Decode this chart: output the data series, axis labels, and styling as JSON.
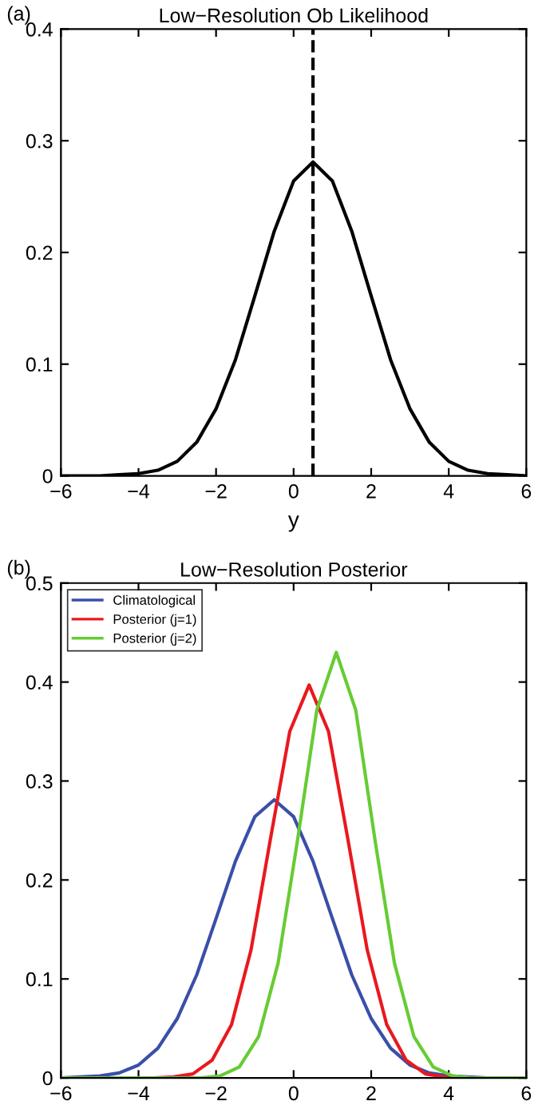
{
  "chart_data": [
    {
      "type": "line",
      "title": "Low−Resolution Ob Likelihood",
      "xlabel": "y",
      "annotations": [
        "(a)"
      ],
      "x": [
        -6,
        -5.5,
        -5,
        -4.5,
        -4,
        -3.5,
        -3,
        -2.5,
        -2,
        -1.5,
        -1,
        -0.5,
        0,
        0.5,
        1,
        1.5,
        2,
        2.5,
        3,
        3.5,
        4,
        4.5,
        5,
        5.5,
        6
      ],
      "series": [
        {
          "color": "#000000",
          "values": [
            0,
            0,
            0,
            0.001,
            0.002,
            0.005,
            0.013,
            0.03,
            0.06,
            0.104,
            0.161,
            0.219,
            0.264,
            0.281,
            0.264,
            0.219,
            0.161,
            0.104,
            0.06,
            0.03,
            0.013,
            0.005,
            0.002,
            0.001,
            0
          ]
        }
      ],
      "ref_lines": [
        {
          "axis": "x",
          "value": 0.5,
          "color": "#000000",
          "line_style": "dashed"
        }
      ],
      "xlim": [
        -6,
        6
      ],
      "ylim": [
        0,
        0.4
      ],
      "xticks": [
        -6,
        -4,
        -2,
        0,
        2,
        4,
        6
      ],
      "yticks": [
        0,
        0.1,
        0.2,
        0.3,
        0.4
      ],
      "grid": false,
      "legend": false
    },
    {
      "type": "line",
      "title": "Low−Resolution Posterior",
      "annotations": [
        "(b)"
      ],
      "series": [
        {
          "name": "Climatological",
          "color": "#3a4fa8",
          "x": [
            -6,
            -5.5,
            -5,
            -4.5,
            -4,
            -3.5,
            -3,
            -2.5,
            -2,
            -1.5,
            -1,
            -0.5,
            0,
            0.5,
            1,
            1.5,
            2,
            2.5,
            3,
            3.5,
            4,
            4.5,
            5,
            5.5,
            6
          ],
          "values": [
            0,
            0.001,
            0.002,
            0.005,
            0.013,
            0.03,
            0.06,
            0.104,
            0.161,
            0.219,
            0.264,
            0.281,
            0.264,
            0.219,
            0.161,
            0.104,
            0.06,
            0.03,
            0.013,
            0.005,
            0.002,
            0.001,
            0,
            0,
            0
          ]
        },
        {
          "name": "Posterior (j=1)",
          "color": "#e8191f",
          "x": [
            -6,
            -3.6,
            -3.1,
            -2.6,
            -2.1,
            -1.6,
            -1.1,
            -0.6,
            -0.1,
            0.4,
            0.9,
            1.4,
            1.9,
            2.4,
            2.9,
            3.4,
            3.9,
            4.4,
            6
          ],
          "values": [
            0,
            0,
            0.001,
            0.004,
            0.018,
            0.054,
            0.129,
            0.241,
            0.35,
            0.397,
            0.35,
            0.241,
            0.129,
            0.054,
            0.018,
            0.004,
            0.001,
            0,
            0
          ]
        },
        {
          "name": "Posterior (j=2)",
          "color": "#66cc33",
          "x": [
            -6,
            -2.4,
            -1.9,
            -1.4,
            -0.9,
            -0.4,
            0.1,
            0.6,
            1.1,
            1.6,
            2.1,
            2.6,
            3.1,
            3.6,
            4.1,
            4.6,
            6
          ],
          "values": [
            0,
            0,
            0.002,
            0.011,
            0.042,
            0.116,
            0.24,
            0.372,
            0.43,
            0.372,
            0.24,
            0.116,
            0.042,
            0.011,
            0.002,
            0,
            0
          ]
        }
      ],
      "xlim": [
        -6,
        6
      ],
      "ylim": [
        0,
        0.5
      ],
      "xticks": [
        -6,
        -4,
        -2,
        0,
        2,
        4,
        6
      ],
      "yticks": [
        0,
        0.1,
        0.2,
        0.3,
        0.4,
        0.5
      ],
      "grid": false,
      "legend": "top left"
    }
  ]
}
